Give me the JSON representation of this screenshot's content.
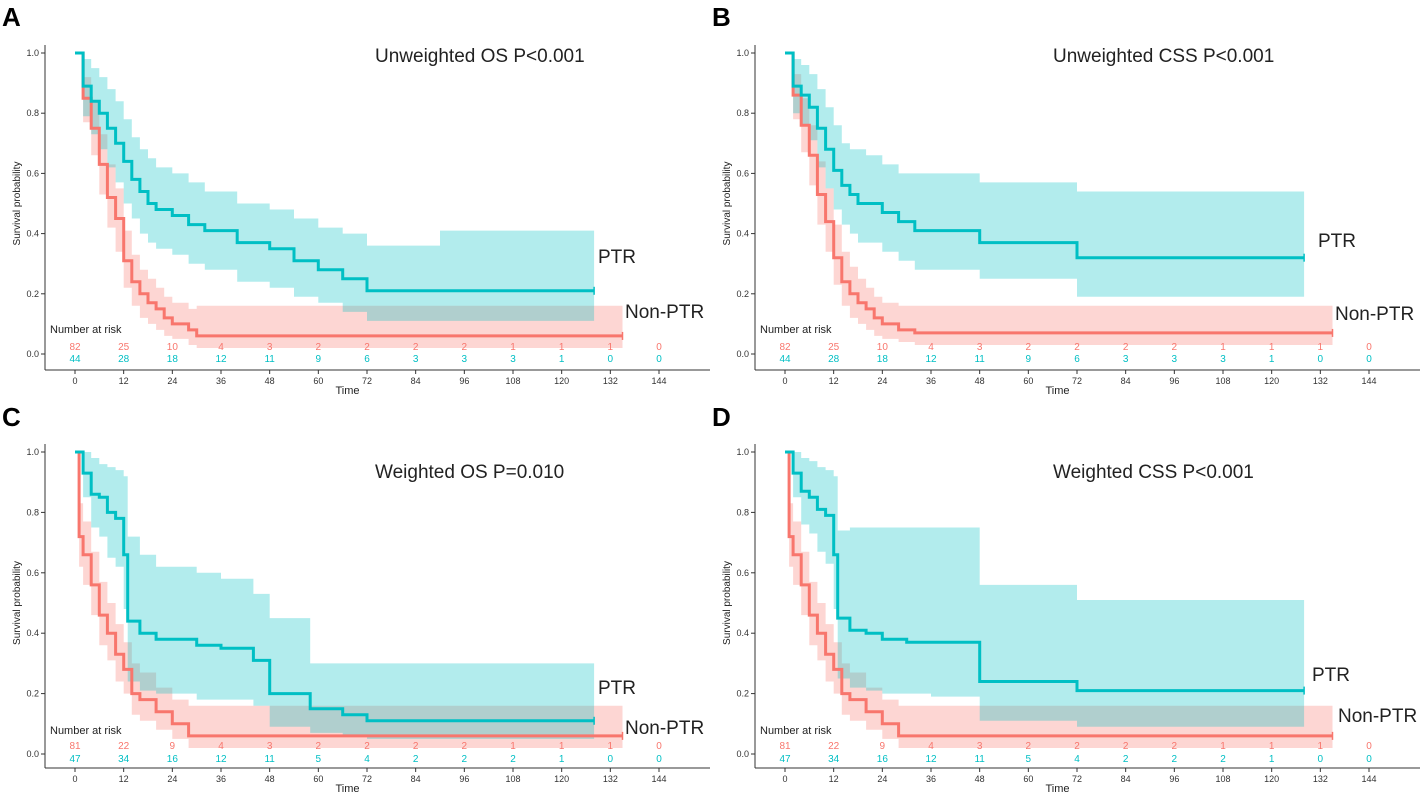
{
  "colors": {
    "ptr": "#00BFC4",
    "non_ptr": "#F8766D"
  },
  "chart_data": [
    {
      "panel_letter": "A",
      "type": "line",
      "title": "Unweighted OS P<0.001",
      "xlabel": "Time",
      "ylabel": "Survival probability",
      "xlim": [
        0,
        144
      ],
      "ylim": [
        0,
        1
      ],
      "xticks": [
        "0",
        "12",
        "24",
        "36",
        "48",
        "60",
        "72",
        "84",
        "96",
        "108",
        "120",
        "132",
        "144"
      ],
      "yticks": [
        "0.0",
        "0.2",
        "0.4",
        "0.6",
        "0.8",
        "1.0"
      ],
      "legend_labels": {
        "ptr": "PTR",
        "non_ptr": "Non-PTR"
      },
      "risk_table": {
        "label": "Number at risk",
        "non_ptr": [
          "82",
          "25",
          "10",
          "4",
          "3",
          "2",
          "2",
          "2",
          "2",
          "1",
          "1",
          "1",
          "0"
        ],
        "ptr": [
          "44",
          "28",
          "18",
          "12",
          "11",
          "9",
          "6",
          "3",
          "3",
          "3",
          "1",
          "0",
          "0"
        ]
      },
      "series": [
        {
          "name": "PTR",
          "key": "ptr",
          "x": [
            0,
            2,
            4,
            6,
            8,
            10,
            12,
            14,
            16,
            18,
            20,
            24,
            28,
            32,
            40,
            44,
            48,
            54,
            60,
            66,
            72,
            90,
            128
          ],
          "y": [
            1.0,
            0.89,
            0.84,
            0.8,
            0.75,
            0.7,
            0.64,
            0.58,
            0.54,
            0.5,
            0.48,
            0.46,
            0.43,
            0.41,
            0.37,
            0.37,
            0.35,
            0.31,
            0.28,
            0.25,
            0.21,
            0.21,
            0.21
          ],
          "lower": [
            1.0,
            0.79,
            0.73,
            0.68,
            0.62,
            0.57,
            0.5,
            0.45,
            0.4,
            0.37,
            0.35,
            0.33,
            0.3,
            0.28,
            0.24,
            0.24,
            0.22,
            0.19,
            0.17,
            0.14,
            0.11,
            0.11,
            0.11
          ],
          "upper": [
            1.0,
            0.98,
            0.95,
            0.92,
            0.88,
            0.84,
            0.78,
            0.72,
            0.68,
            0.65,
            0.62,
            0.6,
            0.57,
            0.54,
            0.5,
            0.5,
            0.48,
            0.45,
            0.42,
            0.4,
            0.36,
            0.41,
            0.41
          ]
        },
        {
          "name": "Non-PTR",
          "key": "non_ptr",
          "x": [
            0,
            2,
            4,
            6,
            8,
            10,
            12,
            14,
            16,
            18,
            20,
            22,
            24,
            28,
            30,
            135
          ],
          "y": [
            1.0,
            0.85,
            0.75,
            0.63,
            0.52,
            0.45,
            0.31,
            0.24,
            0.2,
            0.17,
            0.15,
            0.12,
            0.1,
            0.08,
            0.06,
            0.06
          ],
          "lower": [
            1.0,
            0.77,
            0.66,
            0.53,
            0.42,
            0.34,
            0.22,
            0.16,
            0.12,
            0.1,
            0.08,
            0.06,
            0.05,
            0.03,
            0.02,
            0.0
          ],
          "upper": [
            1.0,
            0.92,
            0.84,
            0.73,
            0.63,
            0.55,
            0.41,
            0.33,
            0.28,
            0.25,
            0.22,
            0.19,
            0.17,
            0.15,
            0.16,
            0.16
          ]
        }
      ]
    },
    {
      "panel_letter": "B",
      "type": "line",
      "title": "Unweighted CSS P<0.001",
      "xlabel": "Time",
      "ylabel": "Survival probability",
      "xlim": [
        0,
        144
      ],
      "ylim": [
        0,
        1
      ],
      "xticks": [
        "0",
        "12",
        "24",
        "36",
        "48",
        "60",
        "72",
        "84",
        "96",
        "108",
        "120",
        "132",
        "144"
      ],
      "yticks": [
        "0.0",
        "0.2",
        "0.4",
        "0.6",
        "0.8",
        "1.0"
      ],
      "legend_labels": {
        "ptr": "PTR",
        "non_ptr": "Non-PTR"
      },
      "risk_table": {
        "label": "Number at risk",
        "non_ptr": [
          "82",
          "25",
          "10",
          "4",
          "3",
          "2",
          "2",
          "2",
          "2",
          "1",
          "1",
          "1",
          "0"
        ],
        "ptr": [
          "44",
          "28",
          "18",
          "12",
          "11",
          "9",
          "6",
          "3",
          "3",
          "3",
          "1",
          "0",
          "0"
        ]
      },
      "series": [
        {
          "name": "PTR",
          "key": "ptr",
          "x": [
            0,
            2,
            4,
            6,
            8,
            10,
            12,
            14,
            16,
            18,
            20,
            24,
            28,
            32,
            48,
            72,
            128
          ],
          "y": [
            1.0,
            0.89,
            0.86,
            0.82,
            0.75,
            0.68,
            0.61,
            0.56,
            0.53,
            0.5,
            0.5,
            0.47,
            0.44,
            0.41,
            0.37,
            0.32,
            0.32
          ],
          "lower": [
            1.0,
            0.8,
            0.76,
            0.71,
            0.62,
            0.55,
            0.48,
            0.43,
            0.4,
            0.37,
            0.37,
            0.34,
            0.31,
            0.28,
            0.25,
            0.19,
            0.19
          ],
          "upper": [
            1.0,
            0.98,
            0.96,
            0.93,
            0.88,
            0.82,
            0.76,
            0.7,
            0.68,
            0.68,
            0.66,
            0.63,
            0.6,
            0.6,
            0.57,
            0.54,
            0.54
          ]
        },
        {
          "name": "Non-PTR",
          "key": "non_ptr",
          "x": [
            0,
            2,
            4,
            6,
            8,
            10,
            12,
            14,
            16,
            18,
            20,
            22,
            24,
            28,
            32,
            135
          ],
          "y": [
            1.0,
            0.86,
            0.76,
            0.66,
            0.53,
            0.44,
            0.32,
            0.24,
            0.2,
            0.17,
            0.15,
            0.12,
            0.1,
            0.08,
            0.07,
            0.07
          ],
          "lower": [
            1.0,
            0.78,
            0.67,
            0.56,
            0.43,
            0.34,
            0.23,
            0.16,
            0.12,
            0.1,
            0.08,
            0.06,
            0.05,
            0.04,
            0.03,
            0.03
          ],
          "upper": [
            1.0,
            0.93,
            0.85,
            0.76,
            0.64,
            0.55,
            0.43,
            0.34,
            0.29,
            0.25,
            0.22,
            0.19,
            0.17,
            0.16,
            0.16,
            0.16
          ]
        }
      ]
    },
    {
      "panel_letter": "C",
      "type": "line",
      "title": "Weighted OS P=0.010",
      "xlabel": "Time",
      "ylabel": "Survival probability",
      "xlim": [
        0,
        144
      ],
      "ylim": [
        0,
        1
      ],
      "xticks": [
        "0",
        "12",
        "24",
        "36",
        "48",
        "60",
        "72",
        "84",
        "96",
        "108",
        "120",
        "132",
        "144"
      ],
      "yticks": [
        "0.0",
        "0.2",
        "0.4",
        "0.6",
        "0.8",
        "1.0"
      ],
      "legend_labels": {
        "ptr": "PTR",
        "non_ptr": "Non-PTR"
      },
      "risk_table": {
        "label": "Number at risk",
        "non_ptr": [
          "81",
          "22",
          "9",
          "4",
          "3",
          "2",
          "2",
          "2",
          "2",
          "1",
          "1",
          "1",
          "0"
        ],
        "ptr": [
          "47",
          "34",
          "16",
          "12",
          "11",
          "5",
          "4",
          "2",
          "2",
          "2",
          "1",
          "0",
          "0"
        ]
      },
      "series": [
        {
          "name": "PTR",
          "key": "ptr",
          "x": [
            0,
            2,
            4,
            6,
            8,
            10,
            12,
            13,
            16,
            20,
            24,
            30,
            36,
            44,
            48,
            58,
            66,
            72,
            128
          ],
          "y": [
            1.0,
            0.93,
            0.86,
            0.85,
            0.8,
            0.78,
            0.66,
            0.44,
            0.4,
            0.38,
            0.38,
            0.36,
            0.35,
            0.31,
            0.2,
            0.15,
            0.13,
            0.11,
            0.11
          ],
          "lower": [
            1.0,
            0.85,
            0.75,
            0.72,
            0.65,
            0.62,
            0.48,
            0.24,
            0.21,
            0.2,
            0.2,
            0.18,
            0.18,
            0.16,
            0.09,
            0.07,
            0.06,
            0.05,
            0.05
          ],
          "upper": [
            1.0,
            1.0,
            0.98,
            0.96,
            0.95,
            0.94,
            0.92,
            0.72,
            0.66,
            0.62,
            0.62,
            0.6,
            0.58,
            0.53,
            0.45,
            0.3,
            0.3,
            0.3,
            0.3
          ]
        },
        {
          "name": "Non-PTR",
          "key": "non_ptr",
          "x": [
            0,
            1,
            2,
            4,
            6,
            8,
            10,
            12,
            14,
            16,
            20,
            24,
            28,
            135
          ],
          "y": [
            1.0,
            0.72,
            0.66,
            0.56,
            0.46,
            0.4,
            0.33,
            0.28,
            0.2,
            0.18,
            0.14,
            0.1,
            0.06,
            0.06
          ],
          "lower": [
            1.0,
            0.62,
            0.56,
            0.46,
            0.36,
            0.31,
            0.24,
            0.2,
            0.13,
            0.11,
            0.08,
            0.05,
            0.02,
            0.0
          ],
          "upper": [
            1.0,
            0.83,
            0.77,
            0.67,
            0.57,
            0.5,
            0.43,
            0.37,
            0.3,
            0.27,
            0.22,
            0.18,
            0.16,
            0.16
          ]
        }
      ]
    },
    {
      "panel_letter": "D",
      "type": "line",
      "title": "Weighted CSS P<0.001",
      "xlabel": "Time",
      "ylabel": "Survival probability",
      "xlim": [
        0,
        144
      ],
      "ylim": [
        0,
        1
      ],
      "xticks": [
        "0",
        "12",
        "24",
        "36",
        "48",
        "60",
        "72",
        "84",
        "96",
        "108",
        "120",
        "132",
        "144"
      ],
      "yticks": [
        "0.0",
        "0.2",
        "0.4",
        "0.6",
        "0.8",
        "1.0"
      ],
      "legend_labels": {
        "ptr": "PTR",
        "non_ptr": "Non-PTR"
      },
      "risk_table": {
        "label": "Number at risk",
        "non_ptr": [
          "81",
          "22",
          "9",
          "4",
          "3",
          "2",
          "2",
          "2",
          "2",
          "1",
          "1",
          "1",
          "0"
        ],
        "ptr": [
          "47",
          "34",
          "16",
          "12",
          "11",
          "5",
          "4",
          "2",
          "2",
          "2",
          "1",
          "0",
          "0"
        ]
      },
      "series": [
        {
          "name": "PTR",
          "key": "ptr",
          "x": [
            0,
            2,
            4,
            6,
            8,
            10,
            12,
            13,
            16,
            20,
            24,
            30,
            36,
            48,
            72,
            128
          ],
          "y": [
            1.0,
            0.93,
            0.87,
            0.85,
            0.81,
            0.79,
            0.66,
            0.45,
            0.41,
            0.4,
            0.38,
            0.37,
            0.37,
            0.24,
            0.21,
            0.21
          ],
          "lower": [
            1.0,
            0.85,
            0.76,
            0.73,
            0.67,
            0.63,
            0.48,
            0.25,
            0.22,
            0.21,
            0.2,
            0.2,
            0.19,
            0.11,
            0.09,
            0.09
          ],
          "upper": [
            1.0,
            1.0,
            0.98,
            0.97,
            0.95,
            0.94,
            0.92,
            0.74,
            0.75,
            0.75,
            0.75,
            0.75,
            0.75,
            0.56,
            0.51,
            0.51
          ]
        },
        {
          "name": "Non-PTR",
          "key": "non_ptr",
          "x": [
            0,
            1,
            2,
            4,
            6,
            8,
            10,
            12,
            14,
            16,
            20,
            24,
            28,
            135
          ],
          "y": [
            1.0,
            0.72,
            0.66,
            0.56,
            0.46,
            0.4,
            0.33,
            0.28,
            0.2,
            0.18,
            0.14,
            0.1,
            0.06,
            0.06
          ],
          "lower": [
            1.0,
            0.62,
            0.56,
            0.46,
            0.36,
            0.31,
            0.24,
            0.2,
            0.13,
            0.11,
            0.08,
            0.05,
            0.02,
            0.0
          ],
          "upper": [
            1.0,
            0.83,
            0.77,
            0.67,
            0.57,
            0.5,
            0.43,
            0.37,
            0.3,
            0.27,
            0.22,
            0.18,
            0.16,
            0.16
          ]
        }
      ]
    }
  ]
}
